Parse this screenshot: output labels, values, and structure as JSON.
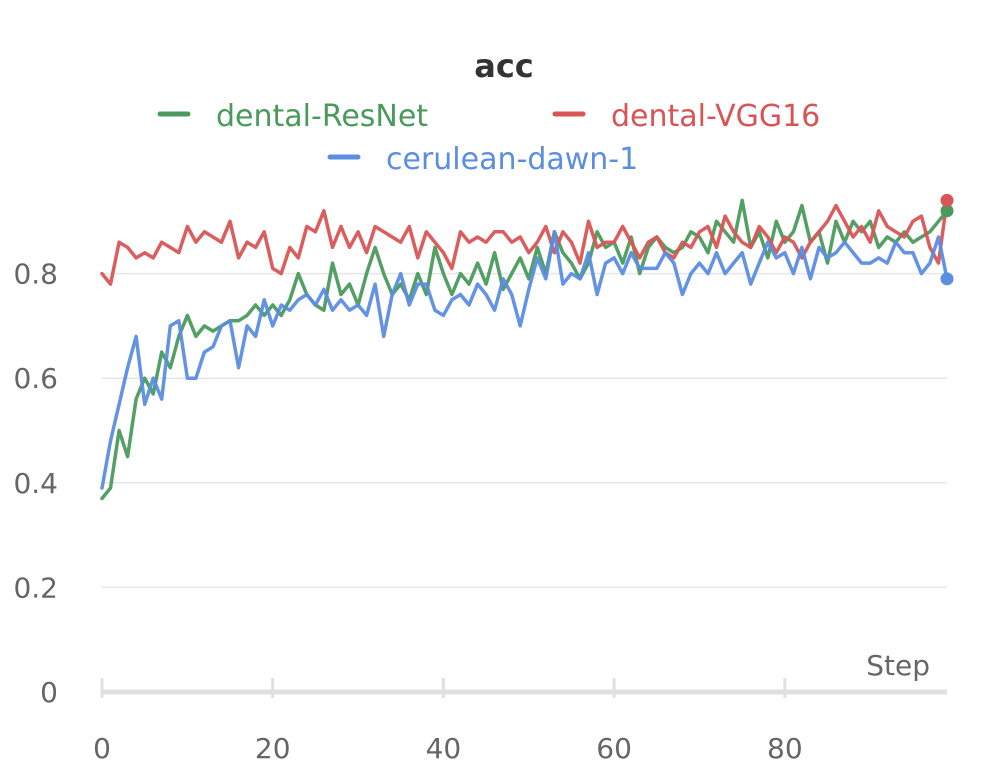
{
  "chart_data": {
    "type": "line",
    "title": "acc",
    "xlabel": "Step",
    "ylabel": "",
    "xlim": [
      0,
      99
    ],
    "ylim": [
      0,
      0.9
    ],
    "xticks": [
      0,
      20,
      40,
      60,
      80
    ],
    "yticks": [
      0,
      0.2,
      0.4,
      0.6,
      0.8
    ],
    "grid": "horizontal",
    "legend_position": "top",
    "series": [
      {
        "name": "dental-ResNet",
        "color": "#4a9a5c",
        "x": [
          0,
          1,
          2,
          3,
          4,
          5,
          6,
          7,
          8,
          9,
          10,
          11,
          12,
          13,
          14,
          15,
          16,
          17,
          18,
          19,
          20,
          21,
          22,
          23,
          24,
          25,
          26,
          27,
          28,
          29,
          30,
          31,
          32,
          33,
          34,
          35,
          36,
          37,
          38,
          39,
          40,
          41,
          42,
          43,
          44,
          45,
          46,
          47,
          48,
          49,
          50,
          51,
          52,
          53,
          54,
          55,
          56,
          57,
          58,
          59,
          60,
          61,
          62,
          63,
          64,
          65,
          66,
          67,
          68,
          69,
          70,
          71,
          72,
          73,
          74,
          75,
          76,
          77,
          78,
          79,
          80,
          81,
          82,
          83,
          84,
          85,
          86,
          87,
          88,
          89,
          90,
          91,
          92,
          93,
          94,
          95,
          96,
          97,
          98,
          99
        ],
        "values": [
          0.37,
          0.39,
          0.5,
          0.45,
          0.56,
          0.6,
          0.57,
          0.65,
          0.62,
          0.68,
          0.72,
          0.68,
          0.7,
          0.69,
          0.7,
          0.71,
          0.71,
          0.72,
          0.74,
          0.72,
          0.74,
          0.72,
          0.75,
          0.8,
          0.76,
          0.74,
          0.73,
          0.82,
          0.76,
          0.78,
          0.74,
          0.8,
          0.85,
          0.8,
          0.76,
          0.78,
          0.75,
          0.8,
          0.76,
          0.85,
          0.8,
          0.76,
          0.8,
          0.78,
          0.82,
          0.78,
          0.84,
          0.77,
          0.8,
          0.83,
          0.79,
          0.85,
          0.8,
          0.88,
          0.84,
          0.82,
          0.79,
          0.82,
          0.88,
          0.85,
          0.86,
          0.82,
          0.87,
          0.8,
          0.85,
          0.87,
          0.85,
          0.84,
          0.85,
          0.88,
          0.87,
          0.84,
          0.9,
          0.88,
          0.86,
          0.94,
          0.85,
          0.88,
          0.83,
          0.9,
          0.86,
          0.88,
          0.93,
          0.86,
          0.88,
          0.82,
          0.9,
          0.86,
          0.9,
          0.88,
          0.9,
          0.85,
          0.87,
          0.86,
          0.88,
          0.86,
          0.87,
          0.88,
          0.9,
          0.92
        ]
      },
      {
        "name": "dental-VGG16",
        "color": "#d95555",
        "x": [
          0,
          1,
          2,
          3,
          4,
          5,
          6,
          7,
          8,
          9,
          10,
          11,
          12,
          13,
          14,
          15,
          16,
          17,
          18,
          19,
          20,
          21,
          22,
          23,
          24,
          25,
          26,
          27,
          28,
          29,
          30,
          31,
          32,
          33,
          34,
          35,
          36,
          37,
          38,
          39,
          40,
          41,
          42,
          43,
          44,
          45,
          46,
          47,
          48,
          49,
          50,
          51,
          52,
          53,
          54,
          55,
          56,
          57,
          58,
          59,
          60,
          61,
          62,
          63,
          64,
          65,
          66,
          67,
          68,
          69,
          70,
          71,
          72,
          73,
          74,
          75,
          76,
          77,
          78,
          79,
          80,
          81,
          82,
          83,
          84,
          85,
          86,
          87,
          88,
          89,
          90,
          91,
          92,
          93,
          94,
          95,
          96,
          97,
          98,
          99
        ],
        "values": [
          0.8,
          0.78,
          0.86,
          0.85,
          0.83,
          0.84,
          0.83,
          0.86,
          0.85,
          0.84,
          0.89,
          0.86,
          0.88,
          0.87,
          0.86,
          0.9,
          0.83,
          0.86,
          0.85,
          0.88,
          0.81,
          0.8,
          0.85,
          0.83,
          0.89,
          0.88,
          0.92,
          0.85,
          0.89,
          0.85,
          0.88,
          0.84,
          0.89,
          0.88,
          0.87,
          0.86,
          0.89,
          0.83,
          0.88,
          0.86,
          0.84,
          0.81,
          0.88,
          0.86,
          0.87,
          0.86,
          0.88,
          0.88,
          0.86,
          0.87,
          0.84,
          0.86,
          0.89,
          0.84,
          0.88,
          0.86,
          0.82,
          0.9,
          0.85,
          0.86,
          0.86,
          0.89,
          0.86,
          0.83,
          0.86,
          0.87,
          0.84,
          0.83,
          0.86,
          0.85,
          0.88,
          0.89,
          0.85,
          0.91,
          0.88,
          0.86,
          0.85,
          0.89,
          0.87,
          0.84,
          0.87,
          0.86,
          0.83,
          0.86,
          0.88,
          0.9,
          0.93,
          0.9,
          0.87,
          0.89,
          0.86,
          0.92,
          0.89,
          0.88,
          0.87,
          0.9,
          0.91,
          0.85,
          0.82,
          0.94
        ]
      },
      {
        "name": "cerulean-dawn-1",
        "color": "#5b8de0",
        "x": [
          0,
          1,
          2,
          3,
          4,
          5,
          6,
          7,
          8,
          9,
          10,
          11,
          12,
          13,
          14,
          15,
          16,
          17,
          18,
          19,
          20,
          21,
          22,
          23,
          24,
          25,
          26,
          27,
          28,
          29,
          30,
          31,
          32,
          33,
          34,
          35,
          36,
          37,
          38,
          39,
          40,
          41,
          42,
          43,
          44,
          45,
          46,
          47,
          48,
          49,
          50,
          51,
          52,
          53,
          54,
          55,
          56,
          57,
          58,
          59,
          60,
          61,
          62,
          63,
          64,
          65,
          66,
          67,
          68,
          69,
          70,
          71,
          72,
          73,
          74,
          75,
          76,
          77,
          78,
          79,
          80,
          81,
          82,
          83,
          84,
          85,
          86,
          87,
          88,
          89,
          90,
          91,
          92,
          93,
          94,
          95,
          96,
          97,
          98,
          99
        ],
        "values": [
          0.39,
          0.48,
          0.55,
          0.62,
          0.68,
          0.55,
          0.6,
          0.56,
          0.7,
          0.71,
          0.6,
          0.6,
          0.65,
          0.66,
          0.7,
          0.71,
          0.62,
          0.7,
          0.68,
          0.75,
          0.7,
          0.74,
          0.73,
          0.75,
          0.76,
          0.74,
          0.77,
          0.73,
          0.75,
          0.73,
          0.74,
          0.72,
          0.78,
          0.68,
          0.76,
          0.8,
          0.74,
          0.78,
          0.78,
          0.73,
          0.72,
          0.75,
          0.76,
          0.74,
          0.78,
          0.76,
          0.73,
          0.79,
          0.76,
          0.7,
          0.77,
          0.83,
          0.79,
          0.88,
          0.78,
          0.8,
          0.79,
          0.84,
          0.76,
          0.82,
          0.83,
          0.8,
          0.84,
          0.81,
          0.81,
          0.81,
          0.84,
          0.82,
          0.76,
          0.8,
          0.82,
          0.8,
          0.84,
          0.8,
          0.82,
          0.84,
          0.78,
          0.82,
          0.86,
          0.83,
          0.84,
          0.8,
          0.85,
          0.79,
          0.85,
          0.83,
          0.84,
          0.86,
          0.84,
          0.82,
          0.82,
          0.83,
          0.82,
          0.86,
          0.84,
          0.84,
          0.8,
          0.82,
          0.87,
          0.79
        ]
      }
    ]
  }
}
